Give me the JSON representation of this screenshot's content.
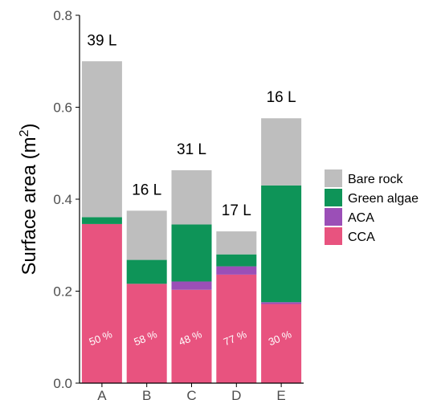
{
  "chart_data": {
    "type": "bar",
    "stacked": true,
    "categories": [
      "A",
      "B",
      "C",
      "D",
      "E"
    ],
    "series": [
      {
        "name": "CCA",
        "color": "#E8537F",
        "values": [
          0.346,
          0.216,
          0.203,
          0.236,
          0.172
        ]
      },
      {
        "name": "ACA",
        "color": "#9B4FB7",
        "values": [
          0.0,
          0.0,
          0.018,
          0.018,
          0.004
        ]
      },
      {
        "name": "Green algae",
        "color": "#0E9458",
        "values": [
          0.015,
          0.052,
          0.124,
          0.026,
          0.254
        ]
      },
      {
        "name": "Bare rock",
        "color": "#BEBEBE",
        "values": [
          0.339,
          0.107,
          0.118,
          0.05,
          0.146
        ]
      }
    ],
    "legend_order": [
      "Bare rock",
      "Green algae",
      "ACA",
      "CCA"
    ],
    "top_labels": [
      "39 L",
      "16 L",
      "31 L",
      "17 L",
      "16 L"
    ],
    "percent_labels": [
      "50 %",
      "58 %",
      "48 %",
      "77 %",
      "30 %"
    ],
    "xlabel": "",
    "ylabel": "Surface area (m",
    "ylabel_sup": "2",
    "ylabel_close": ")",
    "ylim": [
      0,
      0.8
    ],
    "yticks": [
      "0.0",
      "0.2",
      "0.4",
      "0.6",
      "0.8"
    ],
    "legend_position": "right",
    "grid": false
  }
}
